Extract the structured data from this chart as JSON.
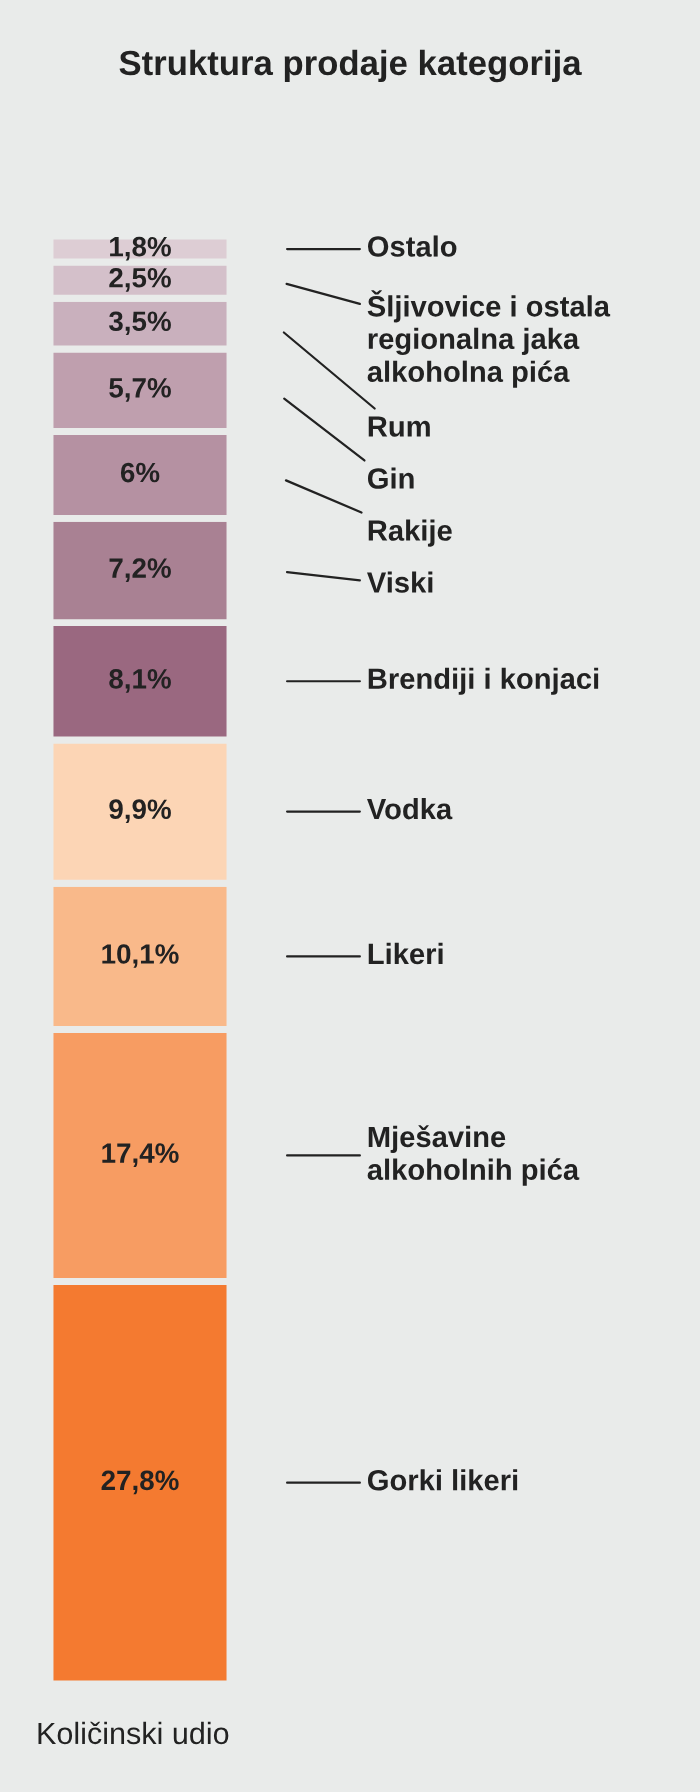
{
  "chart_data": {
    "type": "bar",
    "stacked": true,
    "title": "Struktura prodaje kategorija",
    "xlabel": "Količinski udio",
    "categories": [
      null
    ],
    "series": [
      {
        "name": "Gorki likeri",
        "color": "#f47a30",
        "values": [
          27.8
        ],
        "value_labels": [
          "27,8%"
        ]
      },
      {
        "name": "Mješavine\nalkoholnih pića",
        "color": "#f79c62",
        "values": [
          17.4
        ],
        "value_labels": [
          "17,4%"
        ]
      },
      {
        "name": "Likeri",
        "color": "#f9b98a",
        "values": [
          10.1
        ],
        "value_labels": [
          "10,1%"
        ]
      },
      {
        "name": "Vodka",
        "color": "#fcd5b5",
        "values": [
          9.9
        ],
        "value_labels": [
          "9,9%"
        ]
      },
      {
        "name": "Brendiji i konjaci",
        "color": "#9a6880",
        "values": [
          8.1
        ],
        "value_labels": [
          "8,1%"
        ]
      },
      {
        "name": "Viski",
        "color": "#a98193",
        "values": [
          7.2
        ],
        "value_labels": [
          "7,2%"
        ]
      },
      {
        "name": "Rakije",
        "color": "#b591a2",
        "values": [
          6
        ],
        "value_labels": [
          "6%"
        ]
      },
      {
        "name": "Gin",
        "color": "#bf9fae",
        "values": [
          5.7
        ],
        "value_labels": [
          "5,7%"
        ]
      },
      {
        "name": "Rum",
        "color": "#c9b0bd",
        "values": [
          3.5
        ],
        "value_labels": [
          "3,5%"
        ]
      },
      {
        "name": "Šljivovice i ostala\nregionalna jaka\nalkoholna pića",
        "color": "#d4c0ca",
        "values": [
          2.5
        ],
        "value_labels": [
          "2,5%"
        ]
      },
      {
        "name": "Ostalo",
        "color": "#ddcdd4",
        "values": [
          1.8
        ],
        "value_labels": [
          "1,8%"
        ]
      }
    ]
  }
}
